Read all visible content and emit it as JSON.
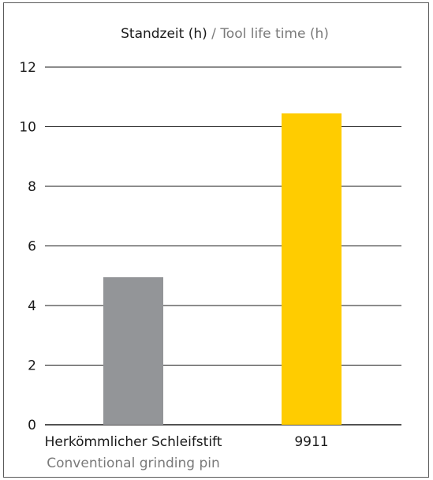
{
  "chart_data": {
    "type": "bar",
    "title": "Standzeit (h)",
    "title_separator": " / ",
    "subtitle": "Tool life time (h)",
    "categories": [
      "Herkömmlicher Schleifstift",
      "9911"
    ],
    "category_subtitles": [
      "Conventional grinding pin",
      ""
    ],
    "values": [
      4.95,
      10.45
    ],
    "colors": [
      "#939598",
      "#ffcc00"
    ],
    "ylim": [
      0,
      12
    ],
    "yticks": [
      0,
      2,
      4,
      6,
      8,
      10,
      12
    ],
    "grid": true,
    "legend": "none"
  }
}
